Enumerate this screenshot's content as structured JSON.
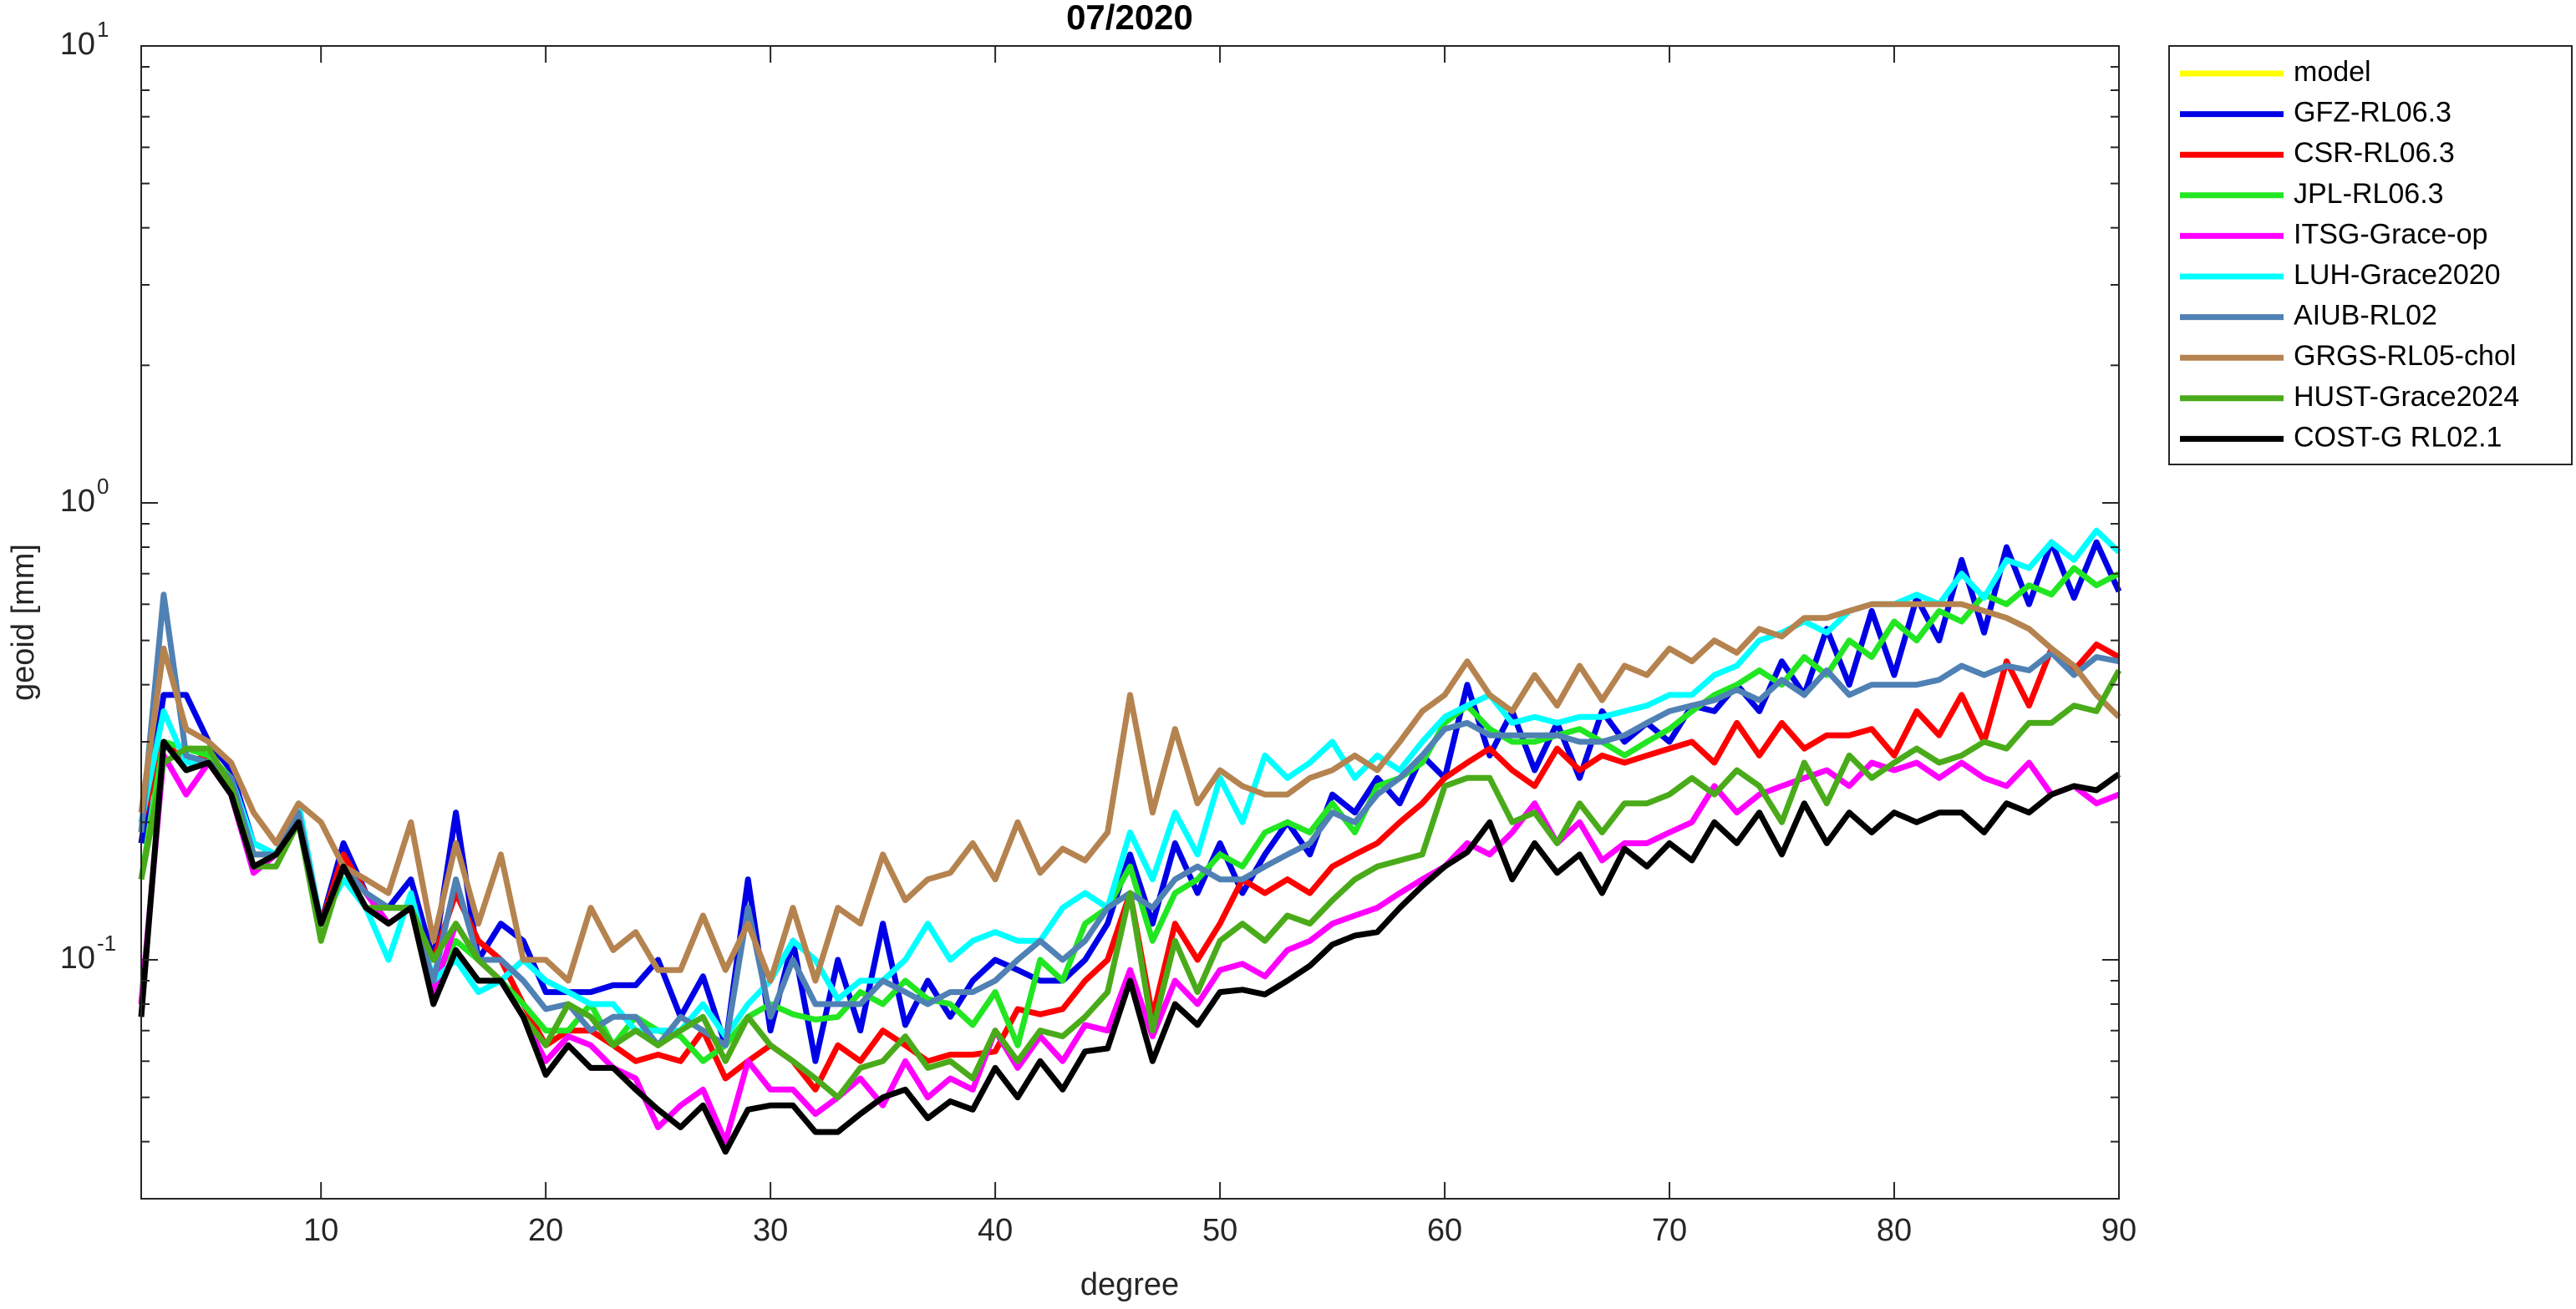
{
  "chart_data": {
    "type": "line",
    "title": "07/2020",
    "xlabel": "degree",
    "ylabel": "geoid [mm]",
    "log_y": true,
    "grid": false,
    "legend": "outside-right",
    "xlim": [
      2,
      90
    ],
    "xticks": [
      10,
      20,
      30,
      40,
      50,
      60,
      70,
      80,
      90
    ],
    "ylim": [
      0.03,
      10
    ],
    "yticks": [
      {
        "value": 0.1,
        "label": "10",
        "exponent": "-1"
      },
      {
        "value": 1,
        "label": "10",
        "exponent": "0"
      },
      {
        "value": 10,
        "label": "10",
        "exponent": "1"
      }
    ],
    "yminorticks": [
      0.04,
      0.05,
      0.06,
      0.07,
      0.08,
      0.09,
      0.2,
      0.3,
      0.4,
      0.5,
      0.6,
      0.7,
      0.8,
      0.9,
      2,
      3,
      4,
      5,
      6,
      7,
      8,
      9
    ],
    "x": [
      2,
      3,
      4,
      5,
      6,
      7,
      8,
      9,
      10,
      11,
      12,
      13,
      14,
      15,
      16,
      17,
      18,
      19,
      20,
      21,
      22,
      23,
      24,
      25,
      26,
      27,
      28,
      29,
      30,
      31,
      32,
      33,
      34,
      35,
      36,
      37,
      38,
      39,
      40,
      41,
      42,
      43,
      44,
      45,
      46,
      47,
      48,
      49,
      50,
      51,
      52,
      53,
      54,
      55,
      56,
      57,
      58,
      59,
      60,
      61,
      62,
      63,
      64,
      65,
      66,
      67,
      68,
      69,
      70,
      71,
      72,
      73,
      74,
      75,
      76,
      77,
      78,
      79,
      80,
      81,
      82,
      83,
      84,
      85,
      86,
      87,
      88,
      89,
      90
    ],
    "series": [
      {
        "name": "model",
        "color": "#ffff00",
        "values": [
          null,
          null,
          null,
          null,
          null,
          null,
          null,
          null,
          null,
          null,
          null,
          null,
          null,
          null,
          null,
          null,
          null,
          null,
          null,
          null,
          null,
          null,
          null,
          null,
          null,
          null,
          null,
          null,
          null,
          null,
          null,
          null,
          null,
          null,
          null,
          null,
          null,
          null,
          null,
          null,
          null,
          null,
          null,
          null,
          null,
          null,
          null,
          null,
          null,
          null,
          null,
          null,
          null,
          null,
          null,
          null,
          null,
          null,
          null,
          null,
          null,
          null,
          null,
          null,
          null,
          null,
          null,
          null,
          null,
          null,
          null,
          null,
          null,
          null,
          null,
          null,
          null,
          null,
          null,
          null,
          null,
          null,
          null,
          null,
          null,
          null,
          null,
          null,
          null
        ]
      },
      {
        "name": "GFZ-RL06.3",
        "color": "#0000e6",
        "values": [
          0.18,
          0.38,
          0.38,
          0.3,
          0.26,
          0.18,
          0.17,
          0.21,
          0.12,
          0.18,
          0.14,
          0.13,
          0.15,
          0.1,
          0.21,
          0.1,
          0.12,
          0.11,
          0.085,
          0.085,
          0.085,
          0.088,
          0.088,
          0.1,
          0.075,
          0.092,
          0.065,
          0.15,
          0.07,
          0.11,
          0.06,
          0.1,
          0.07,
          0.12,
          0.072,
          0.09,
          0.075,
          0.09,
          0.1,
          0.095,
          0.09,
          0.09,
          0.1,
          0.12,
          0.17,
          0.12,
          0.18,
          0.14,
          0.18,
          0.14,
          0.17,
          0.2,
          0.17,
          0.23,
          0.21,
          0.25,
          0.22,
          0.28,
          0.25,
          0.4,
          0.28,
          0.35,
          0.26,
          0.33,
          0.25,
          0.35,
          0.3,
          0.33,
          0.3,
          0.36,
          0.35,
          0.4,
          0.35,
          0.45,
          0.38,
          0.53,
          0.4,
          0.58,
          0.42,
          0.62,
          0.5,
          0.75,
          0.52,
          0.8,
          0.6,
          0.82,
          0.62,
          0.82,
          0.64
        ]
      },
      {
        "name": "CSR-RL06.3",
        "color": "#ff0000",
        "values": [
          0.2,
          0.3,
          0.27,
          0.28,
          0.25,
          0.17,
          0.17,
          0.21,
          0.12,
          0.17,
          0.14,
          0.12,
          0.13,
          0.1,
          0.14,
          0.11,
          0.1,
          0.08,
          0.065,
          0.07,
          0.07,
          0.065,
          0.06,
          0.062,
          0.06,
          0.07,
          0.055,
          0.06,
          0.065,
          0.06,
          0.052,
          0.065,
          0.06,
          0.07,
          0.065,
          0.06,
          0.062,
          0.062,
          0.063,
          0.078,
          0.076,
          0.078,
          0.09,
          0.1,
          0.14,
          0.075,
          0.12,
          0.1,
          0.12,
          0.15,
          0.14,
          0.15,
          0.14,
          0.16,
          0.17,
          0.18,
          0.2,
          0.22,
          0.25,
          0.27,
          0.29,
          0.26,
          0.24,
          0.29,
          0.26,
          0.28,
          0.27,
          0.28,
          0.29,
          0.3,
          0.27,
          0.33,
          0.28,
          0.33,
          0.29,
          0.31,
          0.31,
          0.32,
          0.28,
          0.35,
          0.31,
          0.38,
          0.3,
          0.45,
          0.36,
          0.48,
          0.43,
          0.49,
          0.46
        ]
      },
      {
        "name": "JPL-RL06.3",
        "color": "#22e622",
        "values": [
          0.15,
          0.3,
          0.29,
          0.28,
          0.25,
          0.17,
          0.17,
          0.21,
          0.12,
          0.16,
          0.14,
          0.13,
          0.13,
          0.09,
          0.11,
          0.1,
          0.09,
          0.08,
          0.07,
          0.07,
          0.08,
          0.065,
          0.075,
          0.07,
          0.068,
          0.06,
          0.065,
          0.075,
          0.08,
          0.076,
          0.074,
          0.075,
          0.085,
          0.08,
          0.09,
          0.082,
          0.08,
          0.072,
          0.085,
          0.065,
          0.1,
          0.09,
          0.12,
          0.13,
          0.16,
          0.11,
          0.14,
          0.15,
          0.17,
          0.16,
          0.19,
          0.2,
          0.19,
          0.22,
          0.19,
          0.24,
          0.25,
          0.27,
          0.33,
          0.36,
          0.32,
          0.3,
          0.3,
          0.31,
          0.32,
          0.3,
          0.28,
          0.3,
          0.32,
          0.35,
          0.38,
          0.4,
          0.43,
          0.4,
          0.46,
          0.42,
          0.5,
          0.46,
          0.55,
          0.5,
          0.58,
          0.55,
          0.63,
          0.6,
          0.66,
          0.63,
          0.72,
          0.66,
          0.7
        ]
      },
      {
        "name": "ITSG-Grace-op",
        "color": "#ff00ff",
        "values": [
          0.08,
          0.28,
          0.23,
          0.27,
          0.23,
          0.155,
          0.17,
          0.2,
          0.12,
          0.16,
          0.14,
          0.12,
          0.13,
          0.085,
          0.12,
          0.1,
          0.09,
          0.075,
          0.06,
          0.068,
          0.065,
          0.058,
          0.055,
          0.043,
          0.048,
          0.052,
          0.04,
          0.06,
          0.052,
          0.052,
          0.046,
          0.05,
          0.055,
          0.048,
          0.06,
          0.05,
          0.055,
          0.052,
          0.07,
          0.058,
          0.068,
          0.06,
          0.072,
          0.07,
          0.095,
          0.068,
          0.09,
          0.08,
          0.095,
          0.098,
          0.092,
          0.105,
          0.11,
          0.12,
          0.125,
          0.13,
          0.14,
          0.15,
          0.16,
          0.18,
          0.17,
          0.19,
          0.22,
          0.18,
          0.2,
          0.165,
          0.18,
          0.18,
          0.19,
          0.2,
          0.24,
          0.21,
          0.23,
          0.24,
          0.25,
          0.26,
          0.24,
          0.27,
          0.26,
          0.27,
          0.25,
          0.27,
          0.25,
          0.24,
          0.27,
          0.23,
          0.24,
          0.22,
          0.23
        ]
      },
      {
        "name": "LUH-Grace2020",
        "color": "#00ffff",
        "values": [
          0.2,
          0.35,
          0.27,
          0.27,
          0.25,
          0.18,
          0.17,
          0.22,
          0.12,
          0.15,
          0.13,
          0.1,
          0.14,
          0.09,
          0.1,
          0.085,
          0.09,
          0.1,
          0.09,
          0.085,
          0.08,
          0.08,
          0.07,
          0.07,
          0.07,
          0.08,
          0.068,
          0.08,
          0.09,
          0.11,
          0.1,
          0.082,
          0.09,
          0.09,
          0.1,
          0.12,
          0.1,
          0.11,
          0.115,
          0.11,
          0.11,
          0.13,
          0.14,
          0.13,
          0.19,
          0.15,
          0.21,
          0.17,
          0.25,
          0.2,
          0.28,
          0.25,
          0.27,
          0.3,
          0.25,
          0.28,
          0.26,
          0.3,
          0.34,
          0.36,
          0.38,
          0.33,
          0.34,
          0.33,
          0.34,
          0.34,
          0.35,
          0.36,
          0.38,
          0.38,
          0.42,
          0.44,
          0.5,
          0.52,
          0.55,
          0.52,
          0.58,
          0.6,
          0.6,
          0.63,
          0.6,
          0.7,
          0.62,
          0.75,
          0.72,
          0.82,
          0.75,
          0.87,
          0.78
        ]
      },
      {
        "name": "AIUB-RL02",
        "color": "#4f81b4",
        "values": [
          0.19,
          0.63,
          0.28,
          0.27,
          0.25,
          0.17,
          0.17,
          0.21,
          0.12,
          0.16,
          0.14,
          0.13,
          0.13,
          0.09,
          0.15,
          0.1,
          0.1,
          0.09,
          0.078,
          0.08,
          0.07,
          0.075,
          0.075,
          0.065,
          0.075,
          0.07,
          0.065,
          0.13,
          0.075,
          0.1,
          0.08,
          0.08,
          0.08,
          0.09,
          0.085,
          0.08,
          0.085,
          0.085,
          0.09,
          0.1,
          0.11,
          0.1,
          0.11,
          0.13,
          0.14,
          0.13,
          0.15,
          0.16,
          0.15,
          0.15,
          0.16,
          0.17,
          0.18,
          0.21,
          0.2,
          0.23,
          0.25,
          0.28,
          0.32,
          0.33,
          0.31,
          0.31,
          0.31,
          0.31,
          0.3,
          0.3,
          0.31,
          0.33,
          0.35,
          0.36,
          0.37,
          0.39,
          0.37,
          0.41,
          0.38,
          0.43,
          0.38,
          0.4,
          0.4,
          0.4,
          0.41,
          0.44,
          0.42,
          0.44,
          0.43,
          0.47,
          0.42,
          0.46,
          0.45
        ]
      },
      {
        "name": "GRGS-RL05-chol",
        "color": "#b5834f",
        "values": [
          0.21,
          0.48,
          0.32,
          0.3,
          0.27,
          0.21,
          0.18,
          0.22,
          0.2,
          0.16,
          0.15,
          0.14,
          0.2,
          0.11,
          0.18,
          0.12,
          0.17,
          0.1,
          0.1,
          0.09,
          0.13,
          0.105,
          0.115,
          0.095,
          0.095,
          0.125,
          0.095,
          0.12,
          0.09,
          0.13,
          0.09,
          0.13,
          0.12,
          0.17,
          0.135,
          0.15,
          0.155,
          0.18,
          0.15,
          0.2,
          0.155,
          0.175,
          0.165,
          0.19,
          0.38,
          0.21,
          0.32,
          0.22,
          0.26,
          0.24,
          0.23,
          0.23,
          0.25,
          0.26,
          0.28,
          0.26,
          0.3,
          0.35,
          0.38,
          0.45,
          0.38,
          0.35,
          0.42,
          0.36,
          0.44,
          0.37,
          0.44,
          0.42,
          0.48,
          0.45,
          0.5,
          0.47,
          0.53,
          0.51,
          0.56,
          0.56,
          0.58,
          0.6,
          0.6,
          0.6,
          0.6,
          0.6,
          0.58,
          0.56,
          0.53,
          0.48,
          0.44,
          0.38,
          0.34
        ]
      },
      {
        "name": "HUST-Grace2024",
        "color": "#4aab1a",
        "values": [
          0.15,
          0.27,
          0.29,
          0.29,
          0.24,
          0.16,
          0.16,
          0.2,
          0.11,
          0.16,
          0.13,
          0.13,
          0.13,
          0.1,
          0.12,
          0.1,
          0.09,
          0.075,
          0.065,
          0.08,
          0.075,
          0.065,
          0.07,
          0.065,
          0.07,
          0.075,
          0.06,
          0.075,
          0.065,
          0.06,
          0.055,
          0.05,
          0.058,
          0.06,
          0.068,
          0.058,
          0.06,
          0.055,
          0.07,
          0.06,
          0.07,
          0.068,
          0.075,
          0.085,
          0.14,
          0.07,
          0.11,
          0.085,
          0.11,
          0.12,
          0.11,
          0.125,
          0.12,
          0.135,
          0.15,
          0.16,
          0.165,
          0.17,
          0.24,
          0.25,
          0.25,
          0.2,
          0.21,
          0.18,
          0.22,
          0.19,
          0.22,
          0.22,
          0.23,
          0.25,
          0.23,
          0.26,
          0.24,
          0.2,
          0.27,
          0.22,
          0.28,
          0.25,
          0.27,
          0.29,
          0.27,
          0.28,
          0.3,
          0.29,
          0.33,
          0.33,
          0.36,
          0.35,
          0.43
        ]
      },
      {
        "name": "COST-G RL02.1",
        "color": "#000000",
        "values": [
          0.075,
          0.3,
          0.26,
          0.27,
          0.23,
          0.16,
          0.17,
          0.2,
          0.12,
          0.16,
          0.13,
          0.12,
          0.13,
          0.08,
          0.105,
          0.09,
          0.09,
          0.075,
          0.056,
          0.065,
          0.058,
          0.058,
          0.052,
          0.047,
          0.043,
          0.048,
          0.038,
          0.047,
          0.048,
          0.048,
          0.042,
          0.042,
          0.046,
          0.05,
          0.052,
          0.045,
          0.049,
          0.047,
          0.058,
          0.05,
          0.06,
          0.052,
          0.063,
          0.064,
          0.09,
          0.06,
          0.08,
          0.072,
          0.085,
          0.086,
          0.084,
          0.09,
          0.097,
          0.108,
          0.113,
          0.115,
          0.13,
          0.145,
          0.16,
          0.172,
          0.2,
          0.15,
          0.18,
          0.155,
          0.17,
          0.14,
          0.175,
          0.16,
          0.18,
          0.165,
          0.2,
          0.18,
          0.21,
          0.17,
          0.22,
          0.18,
          0.21,
          0.19,
          0.21,
          0.2,
          0.21,
          0.21,
          0.19,
          0.22,
          0.21,
          0.23,
          0.24,
          0.235,
          0.255
        ]
      }
    ]
  }
}
